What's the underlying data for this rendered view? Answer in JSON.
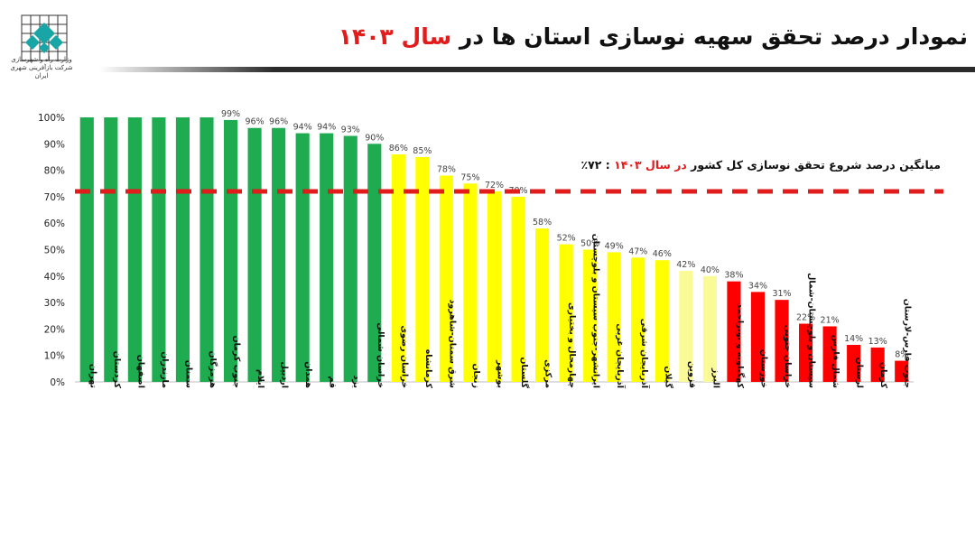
{
  "header": {
    "title_main": "نمودار درصد تحقق سهیه نوسازی استان ها در ",
    "title_accent": "سال ۱۴۰۳",
    "logo_line1": "وزارت راه و شهرسازی",
    "logo_line2": "شرکت بازآفرینی شهری ایران",
    "logo_icon": "lattice-logo-icon"
  },
  "average": {
    "label_main": "میانگین درصد شروع تحقق نوسازی کل کشور ",
    "label_accent": "در سال ۱۴۰۳",
    "label_value": " : ۷۲٪",
    "value": 72,
    "color": "#e21b1b"
  },
  "colors": {
    "green": "#1fab4f",
    "yellow": "#ffff00",
    "pale_yellow": "#fafa96",
    "red": "#ff0000",
    "accent": "#e21b1b"
  },
  "chart_data": {
    "type": "bar",
    "ylim": [
      0,
      100
    ],
    "yticks": [
      "0%",
      "10%",
      "20%",
      "30%",
      "40%",
      "50%",
      "60%",
      "70%",
      "80%",
      "90%",
      "100%"
    ],
    "grid": false,
    "categories": [
      "تهران",
      "کردستان",
      "اصفهان",
      "مازندران",
      "سمنان",
      "هرمزگان",
      "جنوب کرمان",
      "ایلام",
      "اردبیل",
      "همدان",
      "قم",
      "یزد",
      "خراسان شمالی",
      "خراسان رضوی",
      "کرمانشاه",
      "شرق سمنان-شاهرود",
      "زنجان",
      "بوشهر",
      "گلستان",
      "مرکزی",
      "چهارمحال و بختیاری",
      "ایرانشهر-جنوب سیستان و بلوچستان",
      "آذربایجان غربی",
      "آذربایجان شرقی",
      "گیلان",
      "قزوین",
      "البرز",
      "کهگیلویه و بویراحمد",
      "خوزستان",
      "خراسان جنوبی",
      "سیستان و بلوچستان-شمال",
      "شمال فارس",
      "لرستان",
      "کرمان",
      "جنوب فارس-لارستان"
    ],
    "values": [
      100,
      100,
      100,
      100,
      100,
      100,
      99,
      96,
      96,
      94,
      94,
      93,
      90,
      86,
      85,
      78,
      75,
      72,
      70,
      58,
      52,
      50,
      49,
      47,
      46,
      42,
      40,
      38,
      34,
      31,
      22,
      21,
      14,
      13,
      8
    ],
    "labels": [
      "",
      "",
      "",
      "",
      "",
      "",
      "99%",
      "96%",
      "96%",
      "94%",
      "94%",
      "93%",
      "90%",
      "86%",
      "85%",
      "78%",
      "75%",
      "72%",
      "70%",
      "58%",
      "52%",
      "50%",
      "49%",
      "47%",
      "46%",
      "42%",
      "40%",
      "38%",
      "34%",
      "31%",
      "22%",
      "21%",
      "14%",
      "13%",
      "8%"
    ],
    "bar_colors": [
      "green",
      "green",
      "green",
      "green",
      "green",
      "green",
      "green",
      "green",
      "green",
      "green",
      "green",
      "green",
      "green",
      "yellow",
      "yellow",
      "yellow",
      "yellow",
      "yellow",
      "yellow",
      "yellow",
      "yellow",
      "yellow",
      "yellow",
      "yellow",
      "yellow",
      "pale_yellow",
      "pale_yellow",
      "red",
      "red",
      "red",
      "red",
      "red",
      "red",
      "red",
      "red"
    ]
  }
}
